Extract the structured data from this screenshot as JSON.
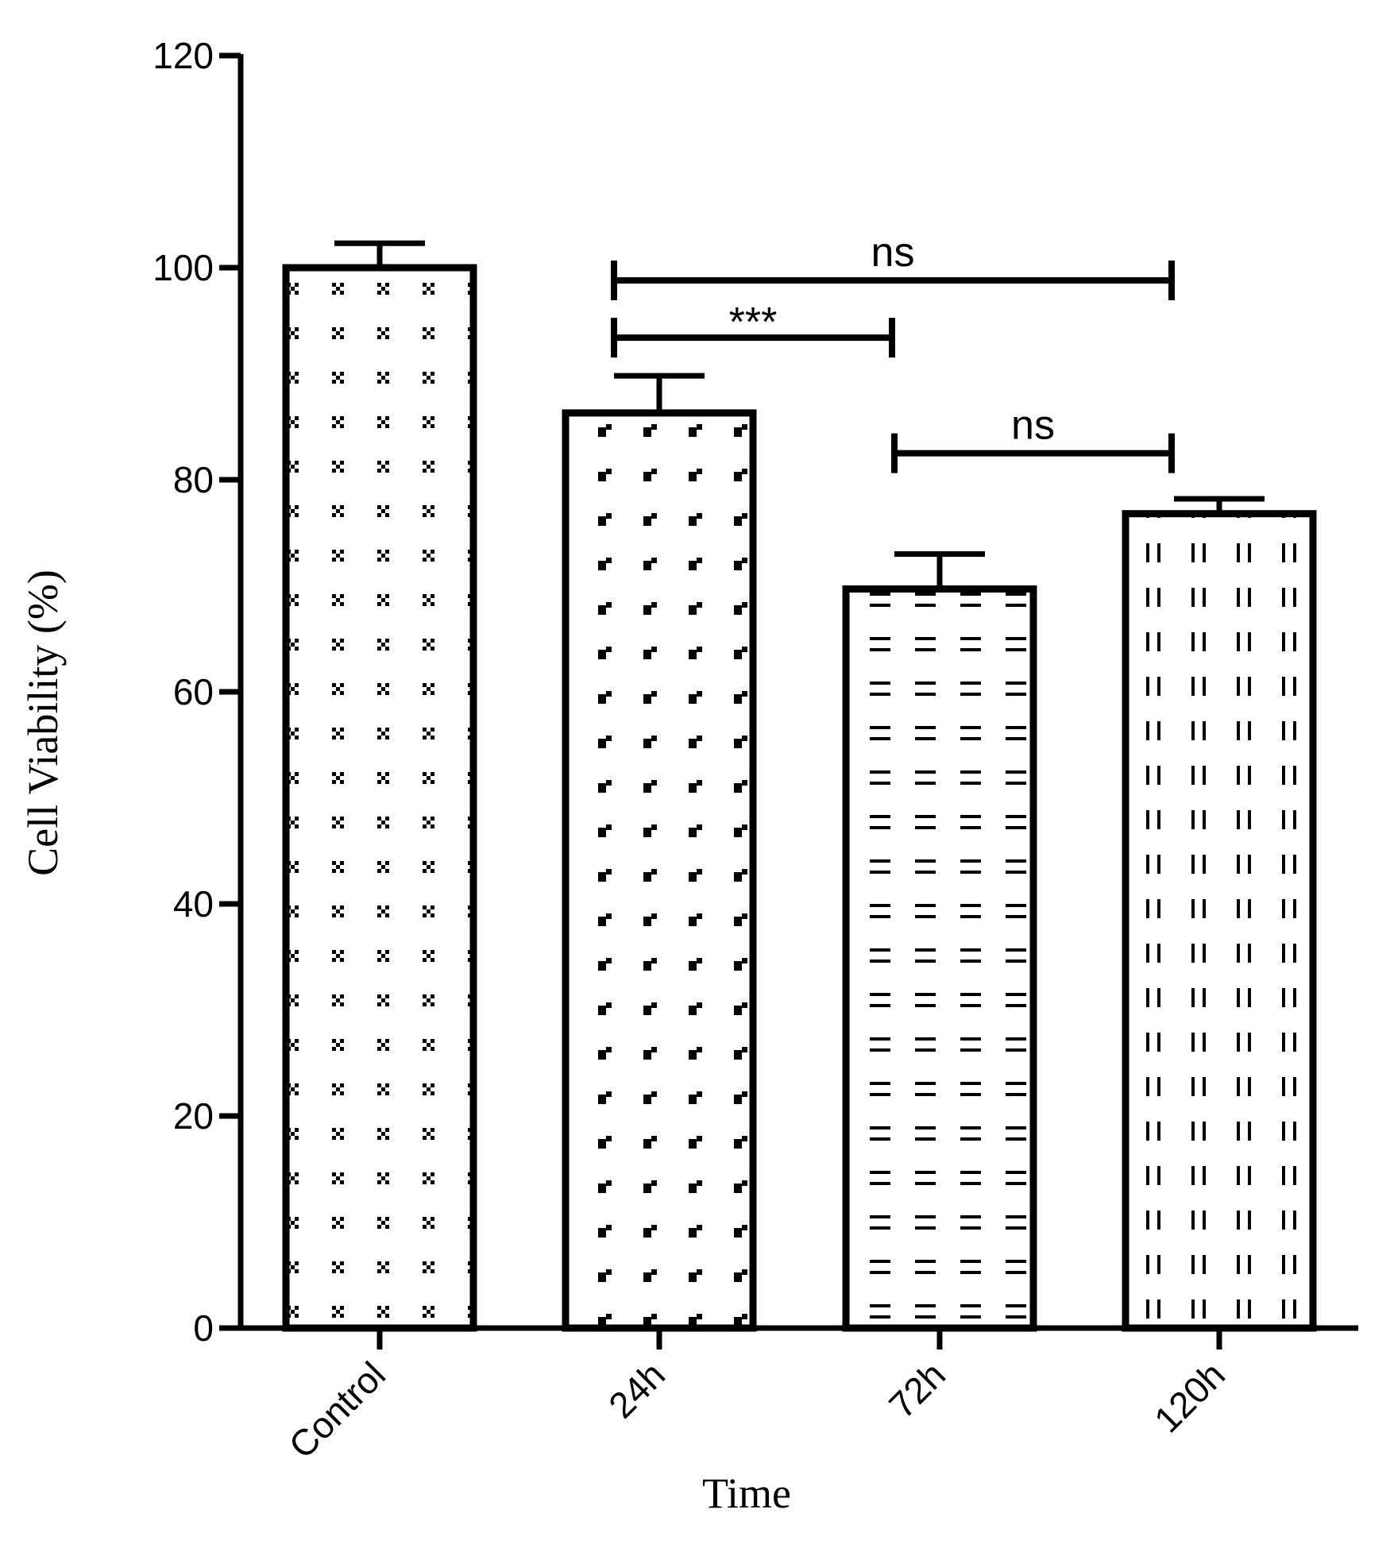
{
  "chart_data": {
    "type": "bar",
    "title": "",
    "xlabel": "Time",
    "ylabel": "Cell Viability (%)",
    "ylim": [
      0,
      120
    ],
    "yticks": [
      0,
      20,
      40,
      60,
      80,
      100,
      120
    ],
    "categories": [
      "Control",
      "24h",
      "72h",
      "120h"
    ],
    "values": [
      100,
      86.3,
      69.7,
      76.8
    ],
    "error_upper": [
      2.3,
      3.5,
      3.3,
      1.4
    ],
    "patterns": [
      "cross-dots",
      "corner-marks",
      "horizontal-dashes",
      "vertical-dashes"
    ],
    "grid": false,
    "legend": "none",
    "significance": [
      {
        "from": "24h",
        "to": "120h",
        "label": "ns",
        "y": 98.8
      },
      {
        "from": "24h",
        "to": "72h",
        "label": "***",
        "y": 93.4
      },
      {
        "from": "72h",
        "to": "120h",
        "label": "ns",
        "y": 82.5
      }
    ]
  }
}
